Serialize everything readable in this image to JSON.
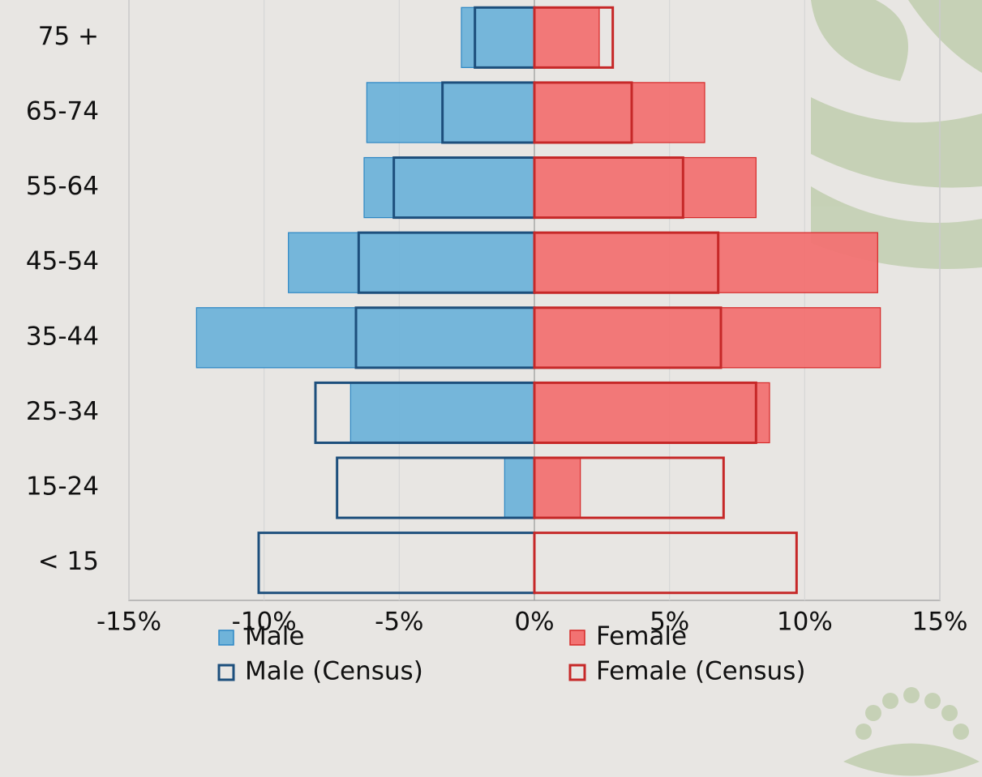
{
  "chart_data": {
    "type": "pyramid",
    "categories": [
      "75 +",
      "65-74",
      "55-64",
      "45-54",
      "35-44",
      "25-34",
      "15-24",
      "< 15"
    ],
    "series": [
      {
        "name": "Male",
        "color": "#6fb3d9",
        "stroke": "#2b86c4",
        "outline": false,
        "values": [
          -2.7,
          -6.2,
          -6.3,
          -9.1,
          -12.5,
          -6.8,
          -1.1,
          0
        ]
      },
      {
        "name": "Female",
        "color": "#f27272",
        "stroke": "#d62828",
        "outline": false,
        "values": [
          2.4,
          6.3,
          8.2,
          12.7,
          12.8,
          8.7,
          1.7,
          0
        ]
      },
      {
        "name": "Male (Census)",
        "color": "#1d4f7c",
        "outline": true,
        "values": [
          -2.2,
          -3.4,
          -5.2,
          -6.5,
          -6.6,
          -8.1,
          -7.3,
          -10.2
        ]
      },
      {
        "name": "Female (Census)",
        "color": "#c62828",
        "outline": true,
        "values": [
          2.9,
          3.6,
          5.5,
          6.8,
          6.9,
          8.2,
          7.0,
          9.7
        ]
      }
    ],
    "xlim": [
      -15,
      15
    ],
    "xticks": [
      {
        "value": -15,
        "label": "-15%"
      },
      {
        "value": -10,
        "label": "-10%"
      },
      {
        "value": -5,
        "label": "-5%"
      },
      {
        "value": 0,
        "label": "0%"
      },
      {
        "value": 5,
        "label": "5%"
      },
      {
        "value": 10,
        "label": "10%"
      },
      {
        "value": 15,
        "label": "15%"
      }
    ],
    "grid": true
  }
}
